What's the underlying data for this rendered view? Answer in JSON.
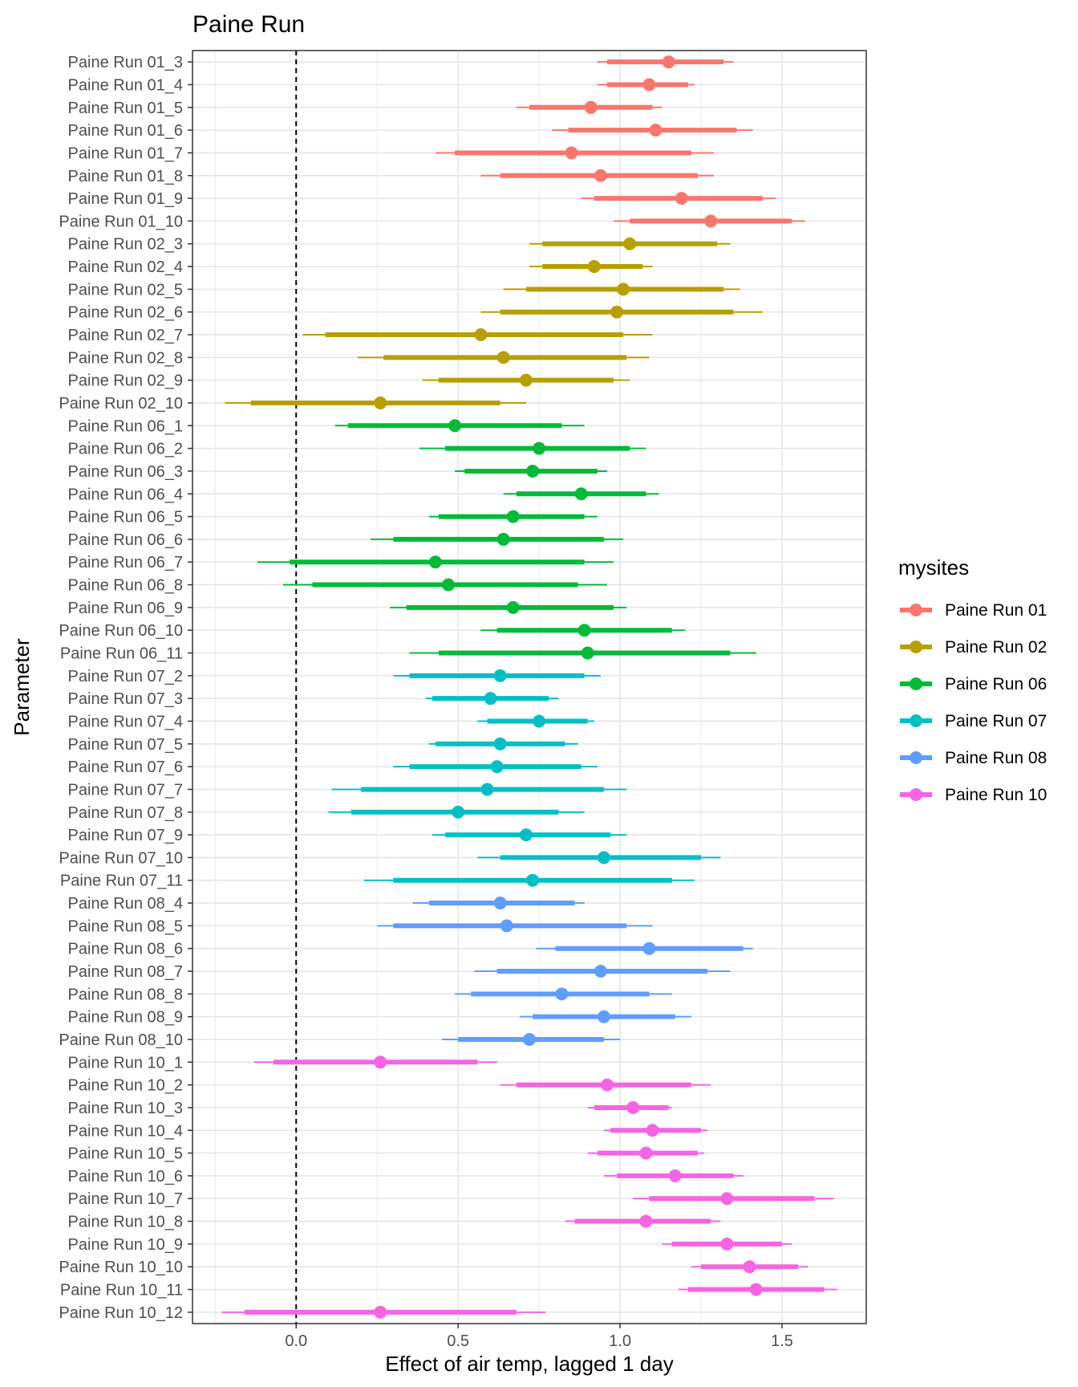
{
  "chart_data": {
    "type": "forest",
    "title": "Paine Run",
    "xlabel": "Effect of air temp, lagged 1 day",
    "ylabel": "Parameter",
    "xlim": [
      -0.32,
      1.76
    ],
    "xticks": [
      0.0,
      0.5,
      1.0,
      1.5
    ],
    "xtick_labels": [
      "0.0",
      "0.5",
      "1.0",
      "1.5"
    ],
    "reference_line": 0.0,
    "legend": {
      "title": "mysites",
      "position": "right",
      "items": [
        {
          "label": "Paine Run 01",
          "color": "#F8766D"
        },
        {
          "label": "Paine Run 02",
          "color": "#B79F00"
        },
        {
          "label": "Paine Run 06",
          "color": "#00BA38"
        },
        {
          "label": "Paine Run 07",
          "color": "#00BFC4"
        },
        {
          "label": "Paine Run 08",
          "color": "#619CFF"
        },
        {
          "label": "Paine Run 10",
          "color": "#F564E3"
        }
      ]
    },
    "rows": [
      {
        "label": "Paine Run 01_3",
        "site": 0,
        "est": 1.15,
        "inner": [
          0.96,
          1.32
        ],
        "outer": [
          0.93,
          1.35
        ]
      },
      {
        "label": "Paine Run 01_4",
        "site": 0,
        "est": 1.09,
        "inner": [
          0.96,
          1.21
        ],
        "outer": [
          0.93,
          1.23
        ]
      },
      {
        "label": "Paine Run 01_5",
        "site": 0,
        "est": 0.91,
        "inner": [
          0.72,
          1.1
        ],
        "outer": [
          0.68,
          1.13
        ]
      },
      {
        "label": "Paine Run 01_6",
        "site": 0,
        "est": 1.11,
        "inner": [
          0.84,
          1.36
        ],
        "outer": [
          0.79,
          1.41
        ]
      },
      {
        "label": "Paine Run 01_7",
        "site": 0,
        "est": 0.85,
        "inner": [
          0.49,
          1.22
        ],
        "outer": [
          0.43,
          1.29
        ]
      },
      {
        "label": "Paine Run 01_8",
        "site": 0,
        "est": 0.94,
        "inner": [
          0.63,
          1.24
        ],
        "outer": [
          0.57,
          1.29
        ]
      },
      {
        "label": "Paine Run 01_9",
        "site": 0,
        "est": 1.19,
        "inner": [
          0.92,
          1.44
        ],
        "outer": [
          0.88,
          1.48
        ]
      },
      {
        "label": "Paine Run 01_10",
        "site": 0,
        "est": 1.28,
        "inner": [
          1.03,
          1.53
        ],
        "outer": [
          0.98,
          1.57
        ]
      },
      {
        "label": "Paine Run 02_3",
        "site": 1,
        "est": 1.03,
        "inner": [
          0.76,
          1.3
        ],
        "outer": [
          0.72,
          1.34
        ]
      },
      {
        "label": "Paine Run 02_4",
        "site": 1,
        "est": 0.92,
        "inner": [
          0.76,
          1.07
        ],
        "outer": [
          0.72,
          1.1
        ]
      },
      {
        "label": "Paine Run 02_5",
        "site": 1,
        "est": 1.01,
        "inner": [
          0.71,
          1.32
        ],
        "outer": [
          0.64,
          1.37
        ]
      },
      {
        "label": "Paine Run 02_6",
        "site": 1,
        "est": 0.99,
        "inner": [
          0.63,
          1.35
        ],
        "outer": [
          0.57,
          1.44
        ]
      },
      {
        "label": "Paine Run 02_7",
        "site": 1,
        "est": 0.57,
        "inner": [
          0.09,
          1.01
        ],
        "outer": [
          0.02,
          1.1
        ]
      },
      {
        "label": "Paine Run 02_8",
        "site": 1,
        "est": 0.64,
        "inner": [
          0.27,
          1.02
        ],
        "outer": [
          0.19,
          1.09
        ]
      },
      {
        "label": "Paine Run 02_9",
        "site": 1,
        "est": 0.71,
        "inner": [
          0.44,
          0.98
        ],
        "outer": [
          0.39,
          1.03
        ]
      },
      {
        "label": "Paine Run 02_10",
        "site": 1,
        "est": 0.26,
        "inner": [
          -0.14,
          0.63
        ],
        "outer": [
          -0.22,
          0.71
        ]
      },
      {
        "label": "Paine Run 06_1",
        "site": 2,
        "est": 0.49,
        "inner": [
          0.16,
          0.82
        ],
        "outer": [
          0.12,
          0.89
        ]
      },
      {
        "label": "Paine Run 06_2",
        "site": 2,
        "est": 0.75,
        "inner": [
          0.46,
          1.03
        ],
        "outer": [
          0.38,
          1.08
        ]
      },
      {
        "label": "Paine Run 06_3",
        "site": 2,
        "est": 0.73,
        "inner": [
          0.52,
          0.93
        ],
        "outer": [
          0.49,
          0.96
        ]
      },
      {
        "label": "Paine Run 06_4",
        "site": 2,
        "est": 0.88,
        "inner": [
          0.68,
          1.08
        ],
        "outer": [
          0.64,
          1.12
        ]
      },
      {
        "label": "Paine Run 06_5",
        "site": 2,
        "est": 0.67,
        "inner": [
          0.44,
          0.89
        ],
        "outer": [
          0.41,
          0.93
        ]
      },
      {
        "label": "Paine Run 06_6",
        "site": 2,
        "est": 0.64,
        "inner": [
          0.3,
          0.95
        ],
        "outer": [
          0.23,
          1.01
        ]
      },
      {
        "label": "Paine Run 06_7",
        "site": 2,
        "est": 0.43,
        "inner": [
          -0.02,
          0.89
        ],
        "outer": [
          -0.12,
          0.98
        ]
      },
      {
        "label": "Paine Run 06_8",
        "site": 2,
        "est": 0.47,
        "inner": [
          0.05,
          0.87
        ],
        "outer": [
          -0.04,
          0.96
        ]
      },
      {
        "label": "Paine Run 06_9",
        "site": 2,
        "est": 0.67,
        "inner": [
          0.34,
          0.98
        ],
        "outer": [
          0.29,
          1.02
        ]
      },
      {
        "label": "Paine Run 06_10",
        "site": 2,
        "est": 0.89,
        "inner": [
          0.62,
          1.16
        ],
        "outer": [
          0.57,
          1.2
        ]
      },
      {
        "label": "Paine Run 06_11",
        "site": 2,
        "est": 0.9,
        "inner": [
          0.44,
          1.34
        ],
        "outer": [
          0.35,
          1.42
        ]
      },
      {
        "label": "Paine Run 07_2",
        "site": 3,
        "est": 0.63,
        "inner": [
          0.35,
          0.89
        ],
        "outer": [
          0.3,
          0.94
        ]
      },
      {
        "label": "Paine Run 07_3",
        "site": 3,
        "est": 0.6,
        "inner": [
          0.42,
          0.78
        ],
        "outer": [
          0.4,
          0.81
        ]
      },
      {
        "label": "Paine Run 07_4",
        "site": 3,
        "est": 0.75,
        "inner": [
          0.59,
          0.9
        ],
        "outer": [
          0.56,
          0.92
        ]
      },
      {
        "label": "Paine Run 07_5",
        "site": 3,
        "est": 0.63,
        "inner": [
          0.43,
          0.83
        ],
        "outer": [
          0.41,
          0.87
        ]
      },
      {
        "label": "Paine Run 07_6",
        "site": 3,
        "est": 0.62,
        "inner": [
          0.35,
          0.88
        ],
        "outer": [
          0.3,
          0.93
        ]
      },
      {
        "label": "Paine Run 07_7",
        "site": 3,
        "est": 0.59,
        "inner": [
          0.2,
          0.95
        ],
        "outer": [
          0.11,
          1.02
        ]
      },
      {
        "label": "Paine Run 07_8",
        "site": 3,
        "est": 0.5,
        "inner": [
          0.17,
          0.81
        ],
        "outer": [
          0.1,
          0.89
        ]
      },
      {
        "label": "Paine Run 07_9",
        "site": 3,
        "est": 0.71,
        "inner": [
          0.46,
          0.97
        ],
        "outer": [
          0.42,
          1.02
        ]
      },
      {
        "label": "Paine Run 07_10",
        "site": 3,
        "est": 0.95,
        "inner": [
          0.63,
          1.25
        ],
        "outer": [
          0.56,
          1.31
        ]
      },
      {
        "label": "Paine Run 07_11",
        "site": 3,
        "est": 0.73,
        "inner": [
          0.3,
          1.16
        ],
        "outer": [
          0.21,
          1.23
        ]
      },
      {
        "label": "Paine Run 08_4",
        "site": 4,
        "est": 0.63,
        "inner": [
          0.41,
          0.86
        ],
        "outer": [
          0.36,
          0.89
        ]
      },
      {
        "label": "Paine Run 08_5",
        "site": 4,
        "est": 0.65,
        "inner": [
          0.3,
          1.02
        ],
        "outer": [
          0.25,
          1.1
        ]
      },
      {
        "label": "Paine Run 08_6",
        "site": 4,
        "est": 1.09,
        "inner": [
          0.8,
          1.38
        ],
        "outer": [
          0.74,
          1.41
        ]
      },
      {
        "label": "Paine Run 08_7",
        "site": 4,
        "est": 0.94,
        "inner": [
          0.62,
          1.27
        ],
        "outer": [
          0.55,
          1.34
        ]
      },
      {
        "label": "Paine Run 08_8",
        "site": 4,
        "est": 0.82,
        "inner": [
          0.54,
          1.09
        ],
        "outer": [
          0.49,
          1.16
        ]
      },
      {
        "label": "Paine Run 08_9",
        "site": 4,
        "est": 0.95,
        "inner": [
          0.73,
          1.17
        ],
        "outer": [
          0.69,
          1.22
        ]
      },
      {
        "label": "Paine Run 08_10",
        "site": 4,
        "est": 0.72,
        "inner": [
          0.5,
          0.95
        ],
        "outer": [
          0.45,
          1.0
        ]
      },
      {
        "label": "Paine Run 10_1",
        "site": 5,
        "est": 0.26,
        "inner": [
          -0.07,
          0.56
        ],
        "outer": [
          -0.13,
          0.62
        ]
      },
      {
        "label": "Paine Run 10_2",
        "site": 5,
        "est": 0.96,
        "inner": [
          0.68,
          1.22
        ],
        "outer": [
          0.63,
          1.28
        ]
      },
      {
        "label": "Paine Run 10_3",
        "site": 5,
        "est": 1.04,
        "inner": [
          0.92,
          1.15
        ],
        "outer": [
          0.9,
          1.16
        ]
      },
      {
        "label": "Paine Run 10_4",
        "site": 5,
        "est": 1.1,
        "inner": [
          0.97,
          1.25
        ],
        "outer": [
          0.95,
          1.27
        ]
      },
      {
        "label": "Paine Run 10_5",
        "site": 5,
        "est": 1.08,
        "inner": [
          0.93,
          1.24
        ],
        "outer": [
          0.9,
          1.26
        ]
      },
      {
        "label": "Paine Run 10_6",
        "site": 5,
        "est": 1.17,
        "inner": [
          0.99,
          1.35
        ],
        "outer": [
          0.95,
          1.38
        ]
      },
      {
        "label": "Paine Run 10_7",
        "site": 5,
        "est": 1.33,
        "inner": [
          1.09,
          1.6
        ],
        "outer": [
          1.04,
          1.66
        ]
      },
      {
        "label": "Paine Run 10_8",
        "site": 5,
        "est": 1.08,
        "inner": [
          0.86,
          1.28
        ],
        "outer": [
          0.83,
          1.31
        ]
      },
      {
        "label": "Paine Run 10_9",
        "site": 5,
        "est": 1.33,
        "inner": [
          1.16,
          1.5
        ],
        "outer": [
          1.13,
          1.53
        ]
      },
      {
        "label": "Paine Run 10_10",
        "site": 5,
        "est": 1.4,
        "inner": [
          1.25,
          1.55
        ],
        "outer": [
          1.22,
          1.58
        ]
      },
      {
        "label": "Paine Run 10_11",
        "site": 5,
        "est": 1.42,
        "inner": [
          1.21,
          1.63
        ],
        "outer": [
          1.18,
          1.67
        ]
      },
      {
        "label": "Paine Run 10_12",
        "site": 5,
        "est": 0.26,
        "inner": [
          -0.16,
          0.68
        ],
        "outer": [
          -0.23,
          0.77
        ]
      }
    ]
  }
}
